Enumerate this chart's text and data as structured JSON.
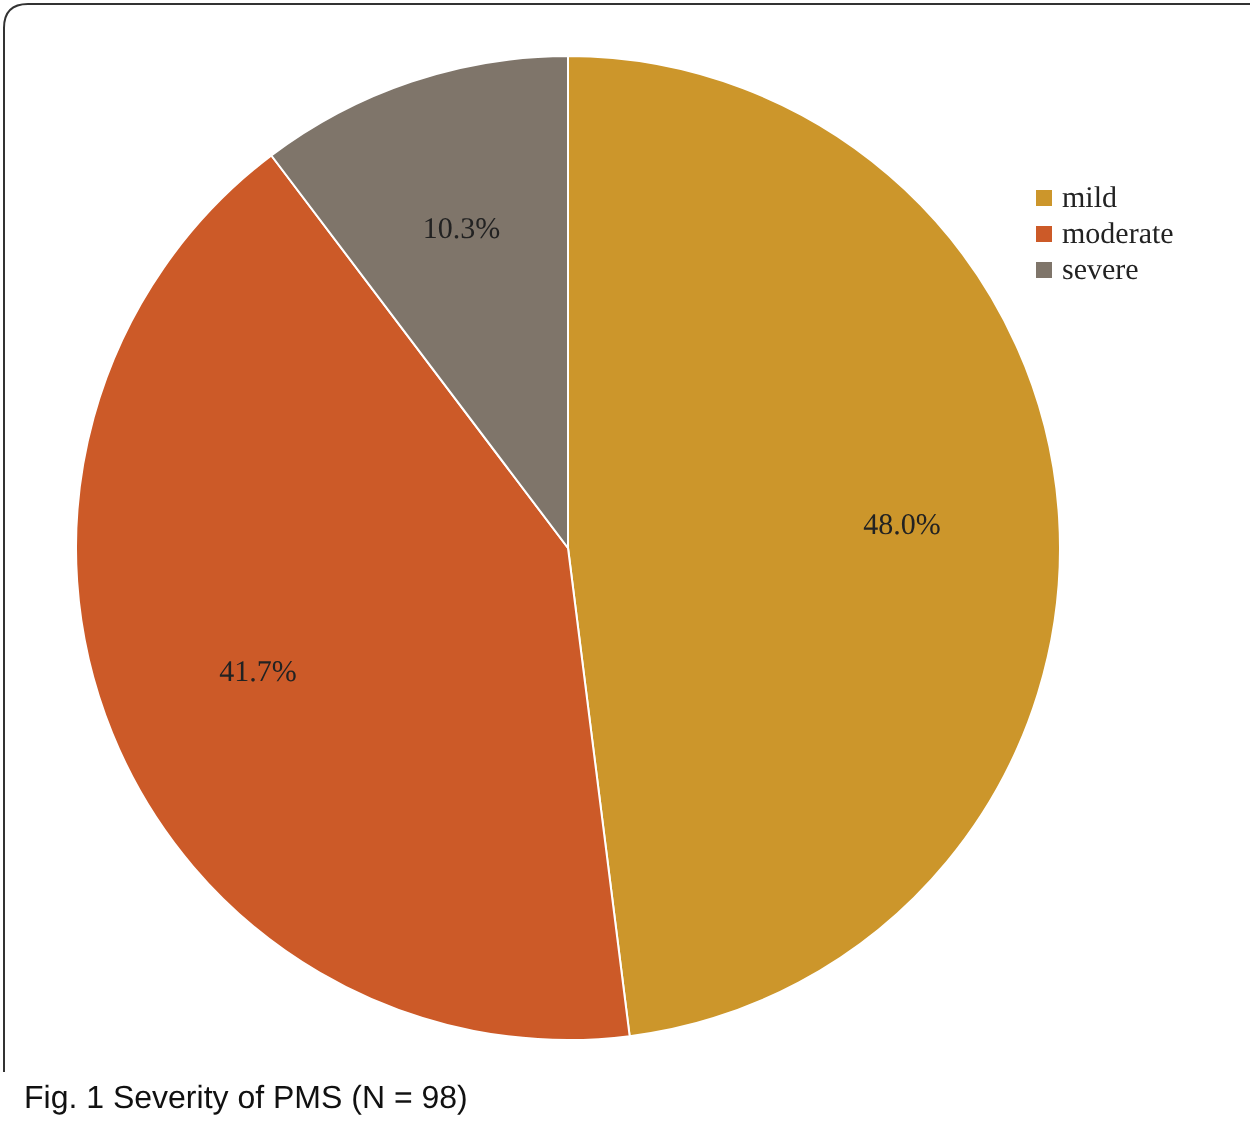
{
  "chart_data": {
    "type": "pie",
    "title": "Fig. 1  Severity of PMS (N = 98)",
    "categories": [
      "mild",
      "moderate",
      "severe"
    ],
    "values": [
      48.0,
      41.7,
      10.3
    ],
    "colors": [
      "#cc962b",
      "#cc5a28",
      "#7f756a"
    ],
    "value_labels": [
      "48.0%",
      "41.7%",
      "10.3%"
    ],
    "legend": "top right"
  }
}
